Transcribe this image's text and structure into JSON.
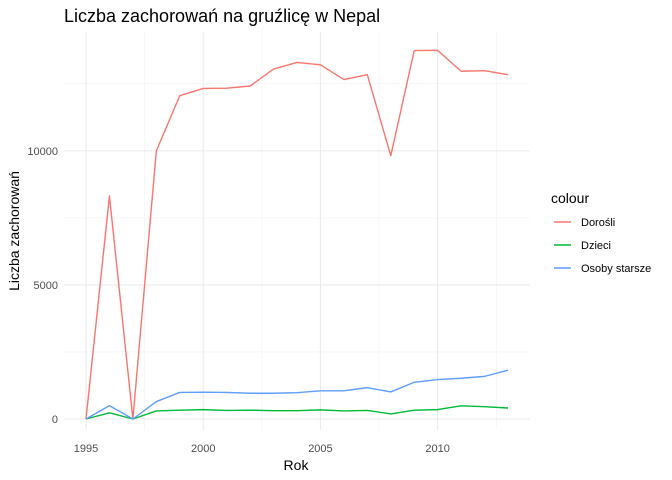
{
  "chart_data": {
    "type": "line",
    "title": "Liczba zachorowań na gruźlicę w Nepal",
    "xlabel": "Rok",
    "ylabel": "Liczba zachorowań",
    "x": [
      1995,
      1996,
      1997,
      1998,
      1999,
      2000,
      2001,
      2002,
      2003,
      2004,
      2005,
      2006,
      2007,
      2008,
      2009,
      2010,
      2011,
      2012,
      2013
    ],
    "xlim": [
      1995,
      2013
    ],
    "ylim": [
      0,
      13800
    ],
    "x_ticks": [
      1995,
      2000,
      2005,
      2010
    ],
    "y_ticks": [
      0,
      5000,
      10000
    ],
    "x_tick_labels": [
      "1995",
      "2000",
      "2005",
      "2010"
    ],
    "y_tick_labels": [
      "0",
      "5000",
      "10000"
    ],
    "grid": true,
    "legend": {
      "title": "colour",
      "position": "right"
    },
    "series": [
      {
        "name": "Dorośli",
        "color": "#F8766D",
        "values": [
          0,
          8320,
          0,
          10000,
          12060,
          12330,
          12340,
          12420,
          13050,
          13300,
          13210,
          12660,
          12840,
          9820,
          13740,
          13750,
          12970,
          12990,
          12840
        ]
      },
      {
        "name": "Dzieci",
        "color": "#00BA38",
        "values": [
          0,
          230,
          0,
          300,
          330,
          350,
          320,
          330,
          310,
          310,
          340,
          300,
          320,
          190,
          330,
          350,
          490,
          460,
          410
        ]
      },
      {
        "name": "Osoby starsze",
        "color": "#619CFF",
        "values": [
          0,
          500,
          0,
          650,
          990,
          1000,
          990,
          960,
          960,
          980,
          1050,
          1050,
          1170,
          1010,
          1370,
          1470,
          1520,
          1590,
          1820
        ]
      }
    ]
  }
}
